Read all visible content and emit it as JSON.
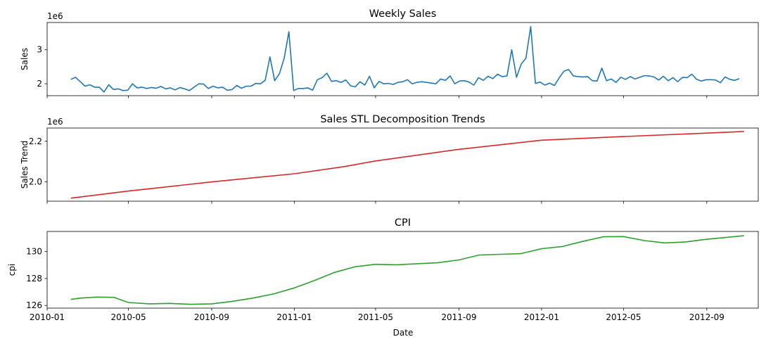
{
  "xlabel": "Date",
  "x_ticks": [
    "2010-01",
    "2010-05",
    "2010-09",
    "2011-01",
    "2011-05",
    "2011-09",
    "2012-01",
    "2012-05",
    "2012-09"
  ],
  "chart_data": [
    {
      "type": "line",
      "title": "Weekly Sales",
      "ylabel": "Sales",
      "offset_text": "1e6",
      "color": "#1f77b4",
      "x_range": [
        "2010-01-01",
        "2012-11-16"
      ],
      "ylim": [
        1.65,
        3.8
      ],
      "y_ticks": [
        2,
        3
      ],
      "y_tick_labels": [
        "2",
        "3"
      ],
      "series": [
        {
          "x_start": "2010-02-05",
          "x_step_days": 7,
          "values": [
            2.13,
            2.19,
            2.06,
            1.93,
            1.97,
            1.9,
            1.9,
            1.76,
            1.97,
            1.83,
            1.85,
            1.8,
            1.81,
            2.0,
            1.88,
            1.9,
            1.86,
            1.89,
            1.87,
            1.92,
            1.85,
            1.88,
            1.82,
            1.89,
            1.85,
            1.8,
            1.9,
            2.0,
            1.99,
            1.86,
            1.93,
            1.88,
            1.9,
            1.81,
            1.83,
            1.95,
            1.87,
            1.93,
            1.93,
            2.01,
            2.0,
            2.1,
            2.79,
            2.09,
            2.3,
            2.75,
            3.53,
            1.8,
            1.86,
            1.86,
            1.88,
            1.81,
            2.12,
            2.18,
            2.31,
            2.07,
            2.09,
            2.04,
            2.11,
            1.94,
            1.91,
            2.06,
            1.96,
            2.22,
            1.88,
            2.07,
            2.0,
            2.01,
            1.98,
            2.04,
            2.06,
            2.12,
            2.0,
            2.04,
            2.06,
            2.04,
            2.02,
            2.0,
            2.14,
            2.1,
            2.23,
            2.0,
            2.08,
            2.09,
            2.05,
            1.96,
            2.18,
            2.1,
            2.22,
            2.15,
            2.28,
            2.21,
            2.23,
            3.0,
            2.19,
            2.58,
            2.75,
            3.68,
            2.01,
            2.05,
            1.96,
            2.02,
            1.95,
            2.17,
            2.37,
            2.42,
            2.23,
            2.21,
            2.2,
            2.21,
            2.09,
            2.08,
            2.46,
            2.09,
            2.14,
            2.04,
            2.19,
            2.13,
            2.21,
            2.14,
            2.19,
            2.24,
            2.23,
            2.2,
            2.11,
            2.22,
            2.09,
            2.18,
            2.06,
            2.19,
            2.18,
            2.28,
            2.13,
            2.08,
            2.12,
            2.12,
            2.11,
            2.03,
            2.2,
            2.13,
            2.1,
            2.15
          ]
        }
      ]
    },
    {
      "type": "line",
      "title": "Sales STL Decomposition Trends",
      "ylabel": "Sales Trend",
      "offset_text": "1e6",
      "color": "#d62728",
      "x_range": [
        "2010-01-01",
        "2012-11-16"
      ],
      "ylim": [
        1.905,
        2.265
      ],
      "y_ticks": [
        2.0,
        2.2
      ],
      "y_tick_labels": [
        "2.0",
        "2.2"
      ],
      "series": [
        {
          "x": [
            "2010-02-05",
            "2010-05-01",
            "2010-09-01",
            "2011-01-01",
            "2011-03-15",
            "2011-05-01",
            "2011-09-01",
            "2012-01-01",
            "2012-05-01",
            "2012-09-01",
            "2012-10-26"
          ],
          "values": [
            1.92,
            1.955,
            2.0,
            2.04,
            2.075,
            2.103,
            2.16,
            2.205,
            2.223,
            2.24,
            2.248
          ]
        }
      ]
    },
    {
      "type": "line",
      "title": "CPI",
      "ylabel": "cpi",
      "color": "#2ca02c",
      "x_range": [
        "2010-01-01",
        "2012-11-16"
      ],
      "ylim": [
        125.8,
        131.5
      ],
      "y_ticks": [
        126,
        128,
        130
      ],
      "y_tick_labels": [
        "126",
        "128",
        "130"
      ],
      "series": [
        {
          "x": [
            "2010-02-05",
            "2010-02-20",
            "2010-03-15",
            "2010-04-10",
            "2010-05-01",
            "2010-06-01",
            "2010-07-01",
            "2010-08-01",
            "2010-09-01",
            "2010-10-01",
            "2010-11-01",
            "2010-12-01",
            "2011-01-01",
            "2011-02-01",
            "2011-03-01",
            "2011-04-01",
            "2011-05-01",
            "2011-06-01",
            "2011-07-01",
            "2011-08-01",
            "2011-09-01",
            "2011-10-01",
            "2011-11-01",
            "2011-12-01",
            "2012-01-01",
            "2012-02-01",
            "2012-03-01",
            "2012-04-01",
            "2012-05-01",
            "2012-06-01",
            "2012-07-01",
            "2012-08-01",
            "2012-09-01",
            "2012-10-26"
          ],
          "values": [
            126.45,
            126.55,
            126.62,
            126.6,
            126.22,
            126.12,
            126.15,
            126.08,
            126.12,
            126.3,
            126.55,
            126.85,
            127.3,
            127.88,
            128.45,
            128.88,
            129.06,
            129.02,
            129.1,
            129.18,
            129.38,
            129.75,
            129.8,
            129.85,
            130.22,
            130.38,
            130.75,
            131.1,
            131.12,
            130.82,
            130.65,
            130.72,
            130.92,
            131.18
          ]
        }
      ]
    }
  ]
}
